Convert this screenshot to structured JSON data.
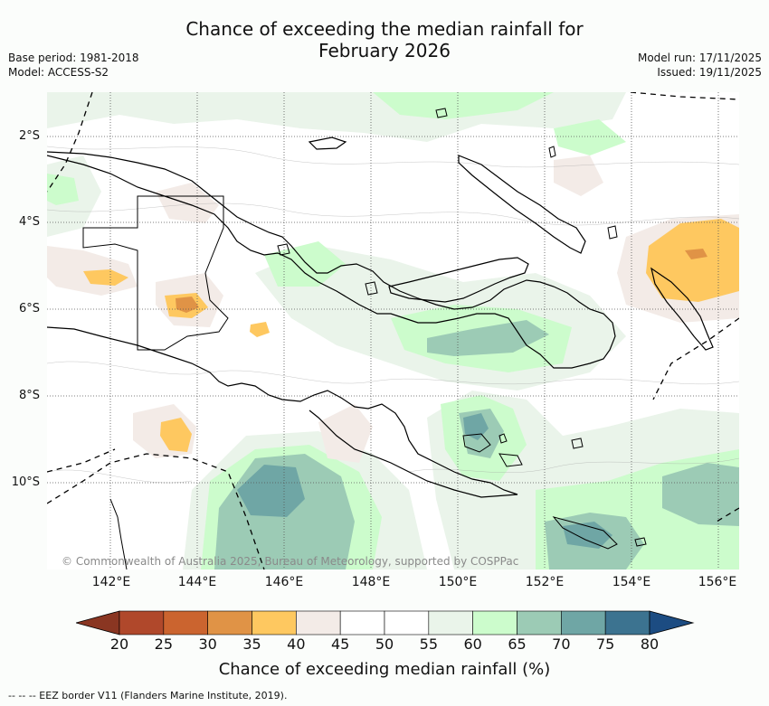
{
  "title": {
    "line1": "Chance of exceeding the median rainfall for",
    "line2": "February 2026"
  },
  "meta_left": {
    "base_period": "Base period: 1981-2018",
    "model": "Model: ACCESS-S2"
  },
  "meta_right": {
    "model_run": "Model run: 17/11/2025",
    "issued": "Issued: 19/11/2025"
  },
  "map": {
    "copyright": "© Commonwealth of Australia 2025, Bureau of Meteorology, supported by COSPPac",
    "lon_ticks": [
      "142°E",
      "144°E",
      "146°E",
      "148°E",
      "150°E",
      "152°E",
      "154°E",
      "156°E"
    ],
    "lat_ticks": [
      "2°S",
      "4°S",
      "6°S",
      "8°S",
      "10°S"
    ],
    "lon_range": [
      141.0,
      156.5
    ],
    "lat_range": [
      -0.9,
      -12.0
    ],
    "colors": {
      "c20_25": "#b0482b",
      "c25_30": "#cb642f",
      "c30_35": "#e09346",
      "c35_40": "#fec860",
      "c40_45": "#f3ebe7",
      "c45_55": "#ffffff",
      "c55_60": "#eaf4ea",
      "c60_65": "#ccfccc",
      "c65_70": "#9ccbb5",
      "c70_75": "#6fa6a5",
      "c75_80": "#3c7390"
    }
  },
  "colorbar": {
    "title": "Chance of exceeding median rainfall (%)",
    "labels": [
      "20",
      "25",
      "30",
      "35",
      "40",
      "45",
      "50",
      "55",
      "60",
      "65",
      "70",
      "75",
      "80"
    ],
    "colors": [
      "#b0482b",
      "#cb642f",
      "#e09346",
      "#fec860",
      "#f3ebe7",
      "#ffffff",
      "#ffffff",
      "#eaf4ea",
      "#ccfccc",
      "#9ccbb5",
      "#6fa6a5",
      "#3c7390"
    ],
    "under_color": "#8a3622",
    "over_color": "#1c4c82"
  },
  "footer": {
    "legend": "--  --  -- EEZ border V11 (Flanders Marine Institute, 2019)."
  }
}
